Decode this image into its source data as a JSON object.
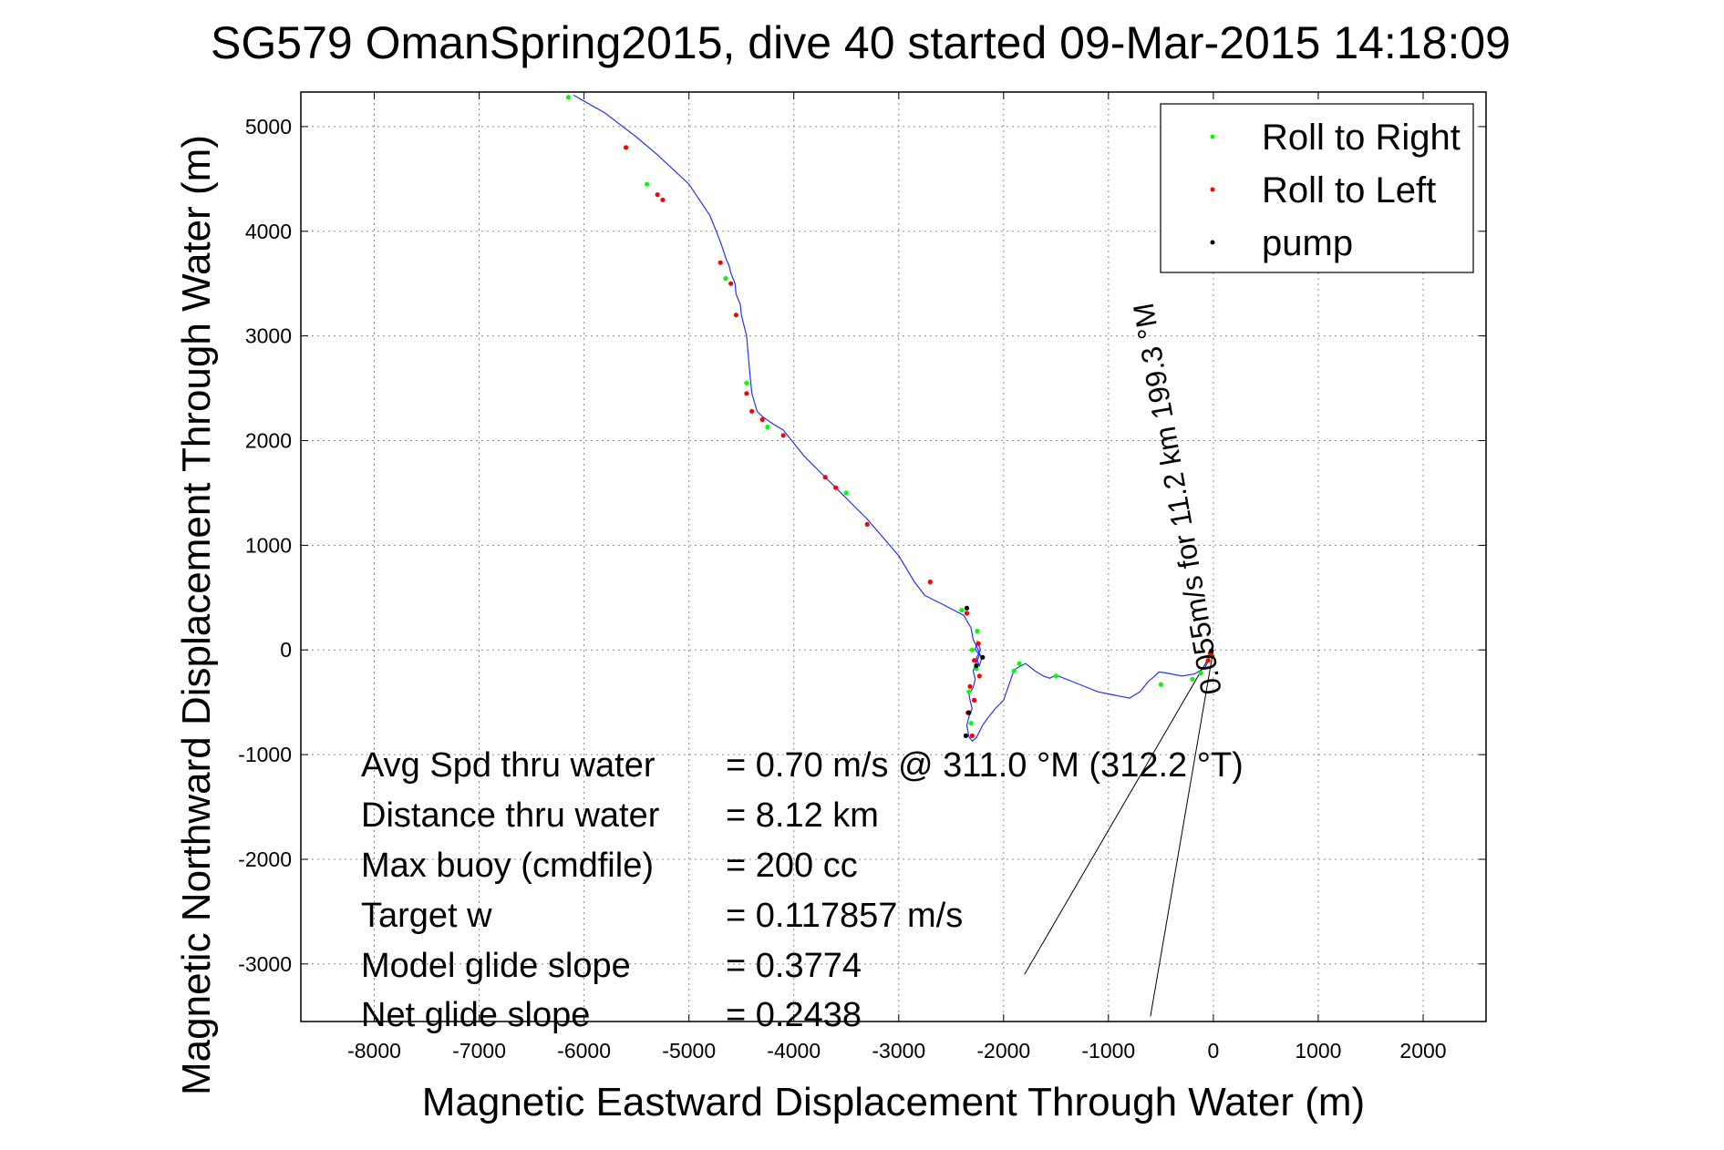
{
  "chart_data": {
    "type": "line",
    "title": "SG579 OmanSpring2015, dive 40 started 09-Mar-2015 14:18:09",
    "xlabel": "Magnetic Eastward Displacement Through Water (m)",
    "ylabel": "Magnetic Northward Displacement Through Water (m)",
    "xlim": [
      -8700,
      2600
    ],
    "ylim": [
      -3550,
      5330
    ],
    "xticks": [
      -8000,
      -7000,
      -6000,
      -5000,
      -4000,
      -3000,
      -2000,
      -1000,
      0,
      1000,
      2000
    ],
    "yticks": [
      -3000,
      -2000,
      -1000,
      0,
      1000,
      2000,
      3000,
      4000,
      5000
    ],
    "xtick_labels": [
      "-8000",
      "-7000",
      "-6000",
      "-5000",
      "-4000",
      "-3000",
      "-2000",
      "-1000",
      "0",
      "1000",
      "2000"
    ],
    "ytick_labels": [
      "-3000",
      "-2000",
      "-1000",
      "0",
      "1000",
      "2000",
      "3000",
      "4000",
      "5000"
    ],
    "grid": true,
    "legend_position": "top-right",
    "legend": [
      {
        "label": "Roll to Right",
        "color": "#00ff00"
      },
      {
        "label": "Roll to Left",
        "color": "#ff0000"
      },
      {
        "label": "pump",
        "color": "#000000"
      }
    ],
    "track_color": "#2233ff",
    "track": {
      "x": [
        0,
        -80,
        -180,
        -300,
        -450,
        -520,
        -570,
        -620,
        -700,
        -800,
        -900,
        -1000,
        -1100,
        -1300,
        -1500,
        -1560,
        -1620,
        -1700,
        -1790,
        -1850,
        -1900,
        -2000,
        -2080,
        -2150,
        -2200,
        -2260,
        -2300,
        -2330,
        -2350,
        -2330,
        -2300,
        -2320,
        -2330,
        -2290,
        -2270,
        -2290,
        -2260,
        -2230,
        -2270,
        -2250,
        -2220,
        -2260,
        -2230,
        -2210,
        -2250,
        -2290,
        -2310,
        -2380,
        -2550,
        -2750,
        -2850,
        -3000,
        -3300,
        -3600,
        -3750,
        -3900,
        -4100,
        -4200,
        -4300,
        -4350,
        -4400,
        -4420,
        -4450,
        -4500,
        -4510,
        -4550,
        -4560,
        -4600,
        -4620,
        -4640,
        -4650,
        -4700,
        -4760,
        -4800,
        -5000,
        -5300,
        -5500,
        -5800,
        -6100
      ],
      "y": [
        0,
        -170,
        -230,
        -250,
        -220,
        -210,
        -260,
        -300,
        -400,
        -460,
        -440,
        -420,
        -400,
        -320,
        -240,
        -270,
        -250,
        -200,
        -130,
        -160,
        -190,
        -480,
        -560,
        -650,
        -720,
        -840,
        -870,
        -830,
        -720,
        -640,
        -560,
        -480,
        -420,
        -360,
        -280,
        -200,
        -120,
        -50,
        10,
        80,
        0,
        -80,
        -150,
        -80,
        20,
        100,
        210,
        330,
        420,
        520,
        650,
        900,
        1250,
        1550,
        1700,
        1850,
        2100,
        2160,
        2230,
        2280,
        2450,
        2650,
        3000,
        3200,
        3300,
        3400,
        3500,
        3600,
        3680,
        3720,
        3750,
        3900,
        4050,
        4150,
        4450,
        4730,
        4900,
        5130,
        5300
      ]
    },
    "roll_right": {
      "x": [
        -6150,
        -5400,
        -4650,
        -4450,
        -4250,
        -3500,
        -2400,
        -2250,
        -2300,
        -2260,
        -2330,
        -2310,
        -1900,
        -1850,
        -1500,
        -500,
        -200,
        -120,
        -40
      ],
      "y": [
        5280,
        4450,
        3550,
        2550,
        2130,
        1500,
        380,
        180,
        0,
        -180,
        -400,
        -700,
        -200,
        -130,
        -250,
        -330,
        -280,
        -220,
        -60
      ]
    },
    "roll_left": {
      "x": [
        -5600,
        -5300,
        -5250,
        -4700,
        -4600,
        -4550,
        -4450,
        -4400,
        -4300,
        -4100,
        -3700,
        -3600,
        -3300,
        -2700,
        -2350,
        -2240,
        -2280,
        -2230,
        -2320,
        -2280,
        -2340,
        -2300,
        -30,
        -10,
        -50
      ],
      "y": [
        4800,
        4350,
        4300,
        3700,
        3500,
        3200,
        2450,
        2280,
        2200,
        2050,
        1650,
        1550,
        1200,
        650,
        350,
        60,
        -100,
        -250,
        -350,
        -480,
        -600,
        -820,
        -30,
        -60,
        -100
      ]
    },
    "pump": {
      "x": [
        -2350,
        -2200,
        -2260,
        -2330,
        -2360,
        -20
      ],
      "y": [
        400,
        -70,
        -150,
        -600,
        -820,
        -10
      ]
    },
    "current_lines": [
      {
        "x": [
          0,
          -1800
        ],
        "y": [
          0,
          -3100
        ]
      },
      {
        "x": [
          0,
          -600
        ],
        "y": [
          0,
          -3500
        ]
      }
    ],
    "current_label": "0.055m/s for 11.2 km 199.3 °M",
    "stats": [
      {
        "label": "Avg Spd thru water",
        "value": "=  0.70 m/s @ 311.0 °M (312.2 °T)"
      },
      {
        "label": "Distance thru water",
        "value": "=  8.12 km"
      },
      {
        "label": "Max buoy (cmdfile)",
        "value": "= 200 cc"
      },
      {
        "label": "Target w",
        "value": "= 0.117857 m/s"
      },
      {
        "label": "Model glide slope",
        "value": "= 0.3774"
      },
      {
        "label": "Net glide slope",
        "value": "= 0.2438"
      }
    ]
  }
}
